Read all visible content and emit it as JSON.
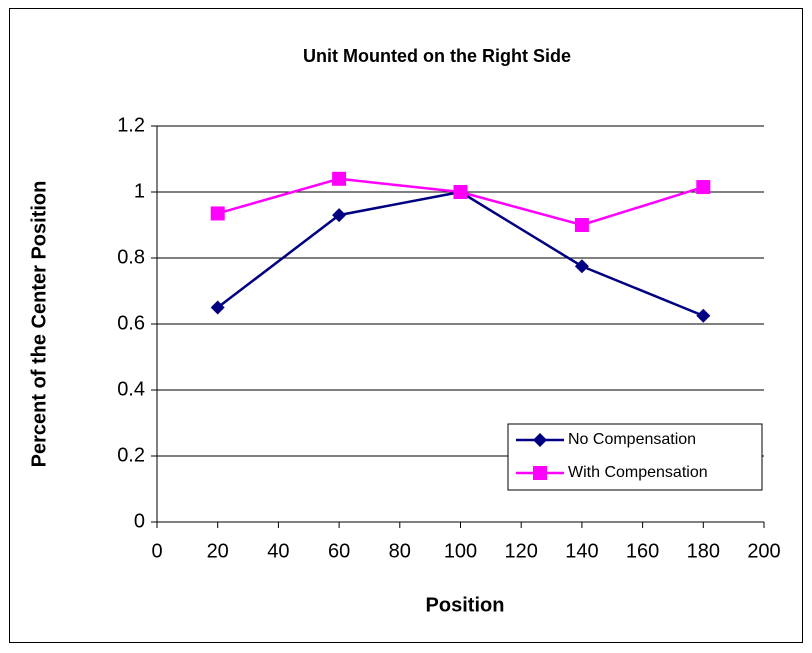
{
  "chart_data": {
    "type": "line",
    "title": "Unit Mounted on the Right Side",
    "x_label": "Position",
    "y_label": "Percent of  the Center Position",
    "x": [
      20,
      60,
      100,
      140,
      180
    ],
    "series": [
      {
        "name": "No Compensation",
        "color": "#000080",
        "marker": "diamond",
        "values": [
          0.65,
          0.93,
          1.0,
          0.775,
          0.625
        ]
      },
      {
        "name": "With Compensation",
        "color": "#ff00ff",
        "marker": "square",
        "values": [
          0.935,
          1.04,
          1.0,
          0.9,
          1.015
        ]
      }
    ],
    "xlim": [
      0,
      200
    ],
    "xticks": [
      0,
      20,
      40,
      60,
      80,
      100,
      120,
      140,
      160,
      180,
      200
    ],
    "ylim": [
      0,
      1.2
    ],
    "yticks": [
      0,
      0.2,
      0.4,
      0.6,
      0.8,
      1,
      1.2
    ],
    "grid": true,
    "legend": "lower right"
  }
}
